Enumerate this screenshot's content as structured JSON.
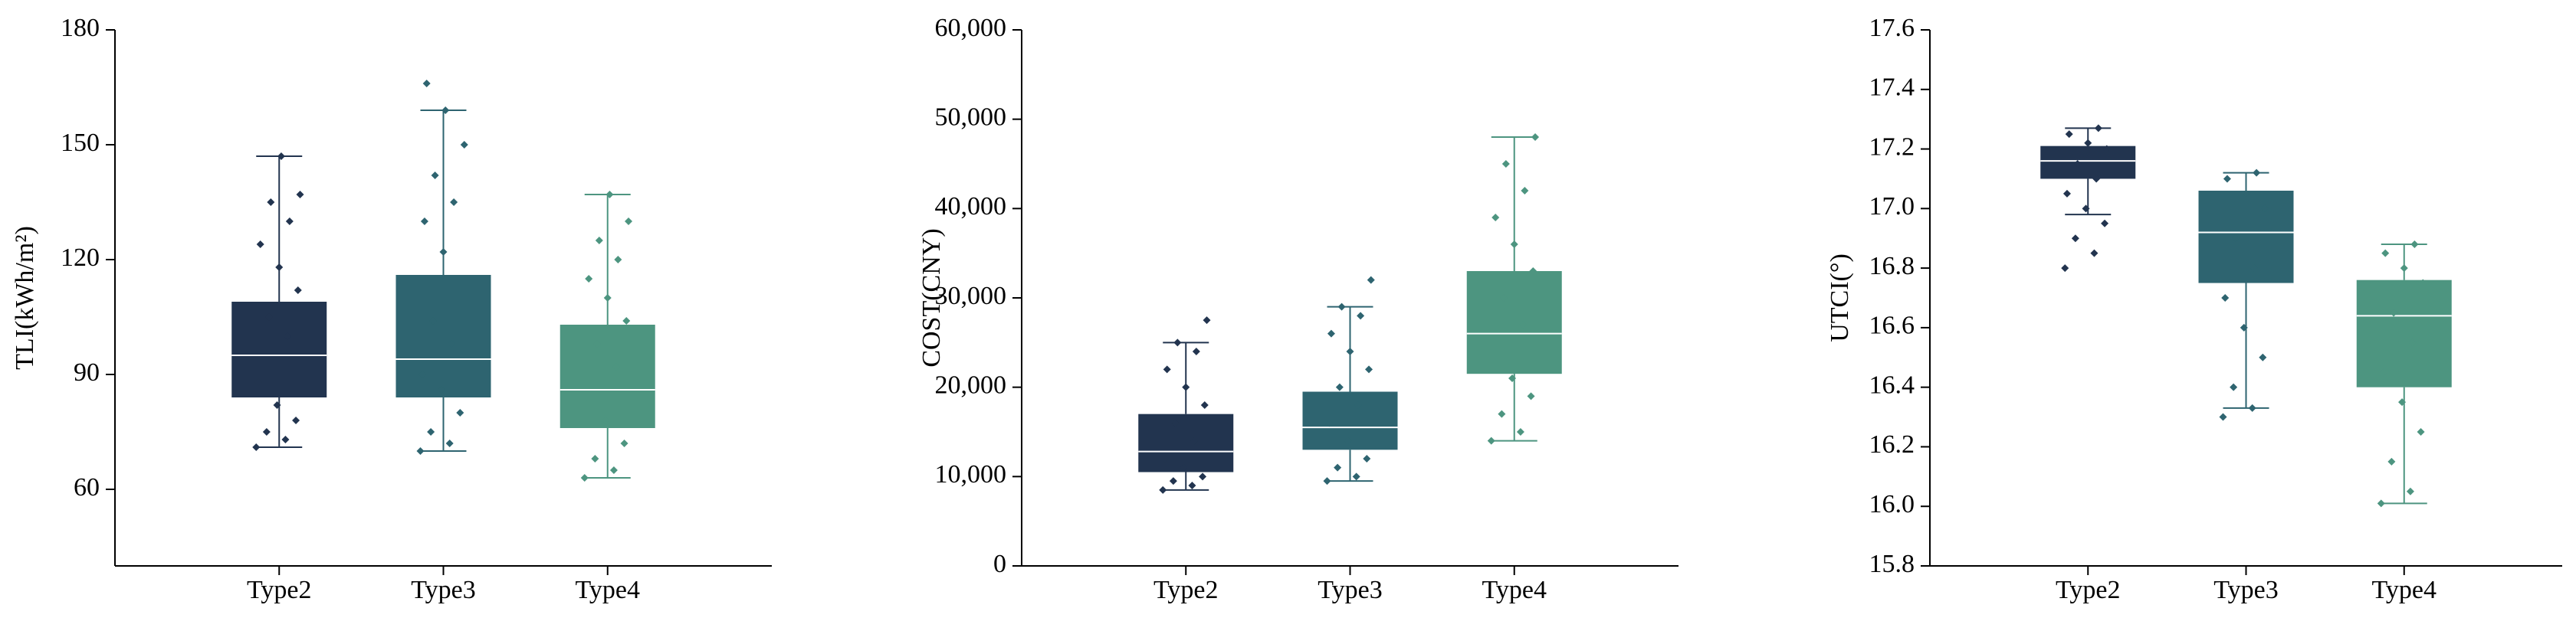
{
  "chart_data": [
    {
      "type": "box",
      "ylabel": "TLI(kWh/m²)",
      "categories": [
        "Type2",
        "Type3",
        "Type4"
      ],
      "colors": [
        "#22344f",
        "#2e6470",
        "#4d9580"
      ],
      "ylim": [
        40,
        180
      ],
      "yticks": [
        60,
        90,
        120,
        150,
        180
      ],
      "boxes": [
        {
          "whislo": 71,
          "q1": 84,
          "med": 95,
          "q3": 109,
          "whishi": 147,
          "points": [
            71,
            73,
            75,
            78,
            82,
            88,
            100,
            105,
            112,
            118,
            124,
            130,
            135,
            137,
            147
          ]
        },
        {
          "whislo": 70,
          "q1": 84,
          "med": 94,
          "q3": 116,
          "whishi": 159,
          "points": [
            70,
            72,
            75,
            80,
            86,
            90,
            98,
            104,
            112,
            122,
            130,
            135,
            142,
            150,
            159,
            166
          ]
        },
        {
          "whislo": 63,
          "q1": 76,
          "med": 86,
          "q3": 103,
          "whishi": 137,
          "points": [
            63,
            65,
            68,
            72,
            78,
            84,
            92,
            98,
            104,
            110,
            115,
            120,
            125,
            130,
            137
          ]
        }
      ]
    },
    {
      "type": "box",
      "ylabel": "COST(CNY)",
      "categories": [
        "Type2",
        "Type3",
        "Type4"
      ],
      "colors": [
        "#22344f",
        "#2e6470",
        "#4d9580"
      ],
      "ylim": [
        0,
        60000
      ],
      "yticks": [
        0,
        {
          "value": 10000,
          "label": "10,000"
        },
        {
          "value": 20000,
          "label": "20,000"
        },
        {
          "value": 30000,
          "label": "30,000"
        },
        {
          "value": 40000,
          "label": "40,000"
        },
        {
          "value": 50000,
          "label": "50,000"
        },
        {
          "value": 60000,
          "label": "60,000"
        }
      ],
      "boxes": [
        {
          "whislo": 8500,
          "q1": 10500,
          "med": 12800,
          "q3": 17000,
          "whishi": 25000,
          "points": [
            8500,
            9000,
            9500,
            10000,
            11000,
            12000,
            14000,
            16000,
            18000,
            20000,
            22000,
            24000,
            25000,
            27500
          ]
        },
        {
          "whislo": 9500,
          "q1": 13000,
          "med": 15500,
          "q3": 19500,
          "whishi": 29000,
          "points": [
            9500,
            10000,
            11000,
            12000,
            14000,
            16000,
            18000,
            20000,
            22000,
            24000,
            26000,
            28000,
            29000,
            32000
          ]
        },
        {
          "whislo": 14000,
          "q1": 21500,
          "med": 26000,
          "q3": 33000,
          "whishi": 48000,
          "points": [
            14000,
            15000,
            17000,
            19000,
            21000,
            24000,
            27000,
            30000,
            33000,
            36000,
            39000,
            42000,
            45000,
            48000
          ]
        }
      ]
    },
    {
      "type": "box",
      "ylabel": "UTCI(°)",
      "categories": [
        "Type2",
        "Type3",
        "Type4"
      ],
      "colors": [
        "#22344f",
        "#2e6470",
        "#4d9580"
      ],
      "ylim": [
        15.8,
        17.6
      ],
      "yticks": [
        15.8,
        {
          "value": 16,
          "label": "16.0"
        },
        16.2,
        16.4,
        16.6,
        16.8,
        {
          "value": 17,
          "label": "17.0"
        },
        17.2,
        17.4,
        17.6
      ],
      "boxes": [
        {
          "whislo": 16.98,
          "q1": 17.1,
          "med": 17.16,
          "q3": 17.21,
          "whishi": 17.27,
          "points": [
            16.8,
            16.85,
            16.9,
            16.95,
            17.0,
            17.05,
            17.1,
            17.15,
            17.2,
            17.22,
            17.25,
            17.27
          ]
        },
        {
          "whislo": 16.33,
          "q1": 16.75,
          "med": 16.92,
          "q3": 17.06,
          "whishi": 17.12,
          "points": [
            16.3,
            16.33,
            16.4,
            16.5,
            16.6,
            16.7,
            16.8,
            16.9,
            17.0,
            17.05,
            17.1,
            17.12
          ]
        },
        {
          "whislo": 16.01,
          "q1": 16.4,
          "med": 16.64,
          "q3": 16.76,
          "whishi": 16.88,
          "points": [
            16.01,
            16.05,
            16.15,
            16.25,
            16.35,
            16.45,
            16.55,
            16.65,
            16.75,
            16.8,
            16.85,
            16.88
          ]
        }
      ]
    }
  ]
}
